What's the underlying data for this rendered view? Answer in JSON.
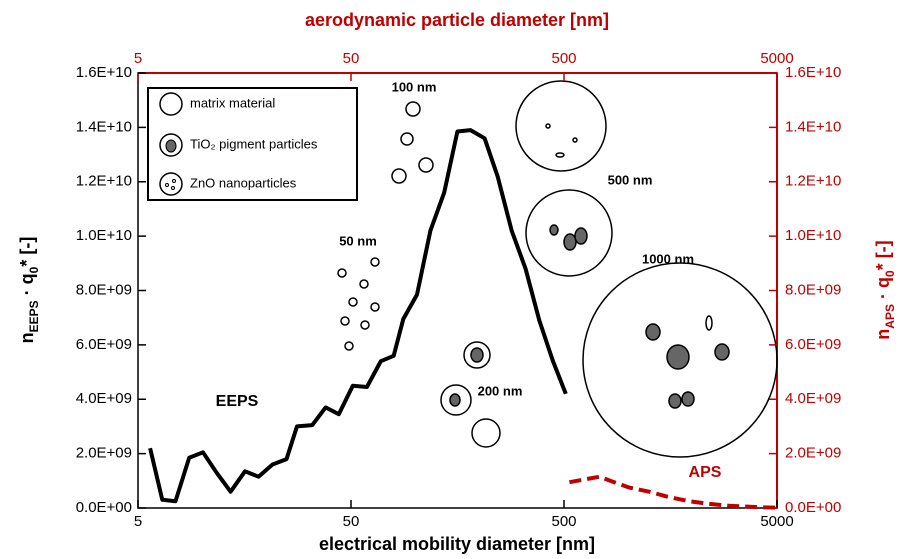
{
  "chart_data": {
    "type": "line",
    "x_label": "electrical mobility diameter [nm]",
    "x2_label": "aerodynamic particle diameter [nm]",
    "y_label": [
      "n",
      "EEPS",
      " · q",
      "0",
      "* [-]"
    ],
    "y2_label": [
      "n",
      "APS",
      " · q",
      "0",
      "* [-]"
    ],
    "xlim": [
      5,
      5000
    ],
    "xticks": [
      5,
      50,
      500,
      5000
    ],
    "xscale": "log",
    "x2lim": [
      5,
      5000
    ],
    "x2ticks": [
      5,
      50,
      500,
      5000
    ],
    "ylim": [
      0,
      16000000000
    ],
    "yticks": [
      {
        "value": 0,
        "label": "0.0E+00"
      },
      {
        "value": 2000000000,
        "label": "2.0E+09"
      },
      {
        "value": 4000000000,
        "label": "4.0E+09"
      },
      {
        "value": 6000000000,
        "label": "6.0E+09"
      },
      {
        "value": 8000000000,
        "label": "8.0E+09"
      },
      {
        "value": 10000000000,
        "label": "1.0E+10"
      },
      {
        "value": 12000000000,
        "label": "1.2E+10"
      },
      {
        "value": 14000000000,
        "label": "1.4E+10"
      },
      {
        "value": 16000000000,
        "label": "1.6E+10"
      }
    ],
    "y2lim": [
      0,
      16000000000
    ],
    "y2ticks": [
      {
        "value": 0,
        "label": "0.0E+00"
      },
      {
        "value": 2000000000,
        "label": "2.0E+09"
      },
      {
        "value": 4000000000,
        "label": "4.0E+09"
      },
      {
        "value": 6000000000,
        "label": "6.0E+09"
      },
      {
        "value": 8000000000,
        "label": "8.0E+09"
      },
      {
        "value": 10000000000,
        "label": "1.0E+10"
      },
      {
        "value": 12000000000,
        "label": "1.2E+10"
      },
      {
        "value": 14000000000,
        "label": "1.4E+10"
      },
      {
        "value": 16000000000,
        "label": "1.6E+10"
      }
    ],
    "axis_color": "#000000",
    "axis2_color": "#c00000",
    "series": [
      {
        "name": "EEPS",
        "color": "#000000",
        "dashed": false,
        "x": [
          5.7,
          6.5,
          7.5,
          8.7,
          10.1,
          11.7,
          13.6,
          15.9,
          18.4,
          21.4,
          24.9,
          27.9,
          32.9,
          38,
          43.8,
          51,
          59.4,
          69,
          79.3,
          88,
          102,
          118,
          137,
          158,
          182,
          212,
          244,
          284,
          330,
          383,
          444,
          510
        ],
        "values": [
          2200000000,
          300000000,
          250000000,
          1850000000,
          2050000000,
          1300000000,
          600000000,
          1350000000,
          1150000000,
          1600000000,
          1800000000,
          3000000000,
          3050000000,
          3700000000,
          3450000000,
          4500000000,
          4450000000,
          5400000000,
          5600000000,
          6950000000,
          7850000000,
          10200000000,
          11600000000,
          13850000000,
          13900000000,
          13600000000,
          12200000000,
          10200000000,
          8800000000,
          6900000000,
          5400000000,
          4200000000
        ]
      },
      {
        "name": "APS",
        "color": "#c00000",
        "dashed": true,
        "axis": "y2",
        "x": [
          530,
          624,
          733,
          860,
          1013,
          1256,
          1558,
          1935,
          2402,
          2980,
          4120,
          5000
        ],
        "values": [
          950000000,
          1050000000,
          1150000000,
          950000000,
          750000000,
          600000000,
          400000000,
          250000000,
          150000000,
          80000000,
          30000000,
          10000000
        ]
      }
    ],
    "legend": [
      "matrix material",
      "TiO₂ pigment particles",
      "ZnO nanoparticles"
    ],
    "annotations": [
      "100 nm",
      "50 nm",
      "200 nm",
      "500 nm",
      "1000 nm",
      "EEPS",
      "APS"
    ]
  }
}
